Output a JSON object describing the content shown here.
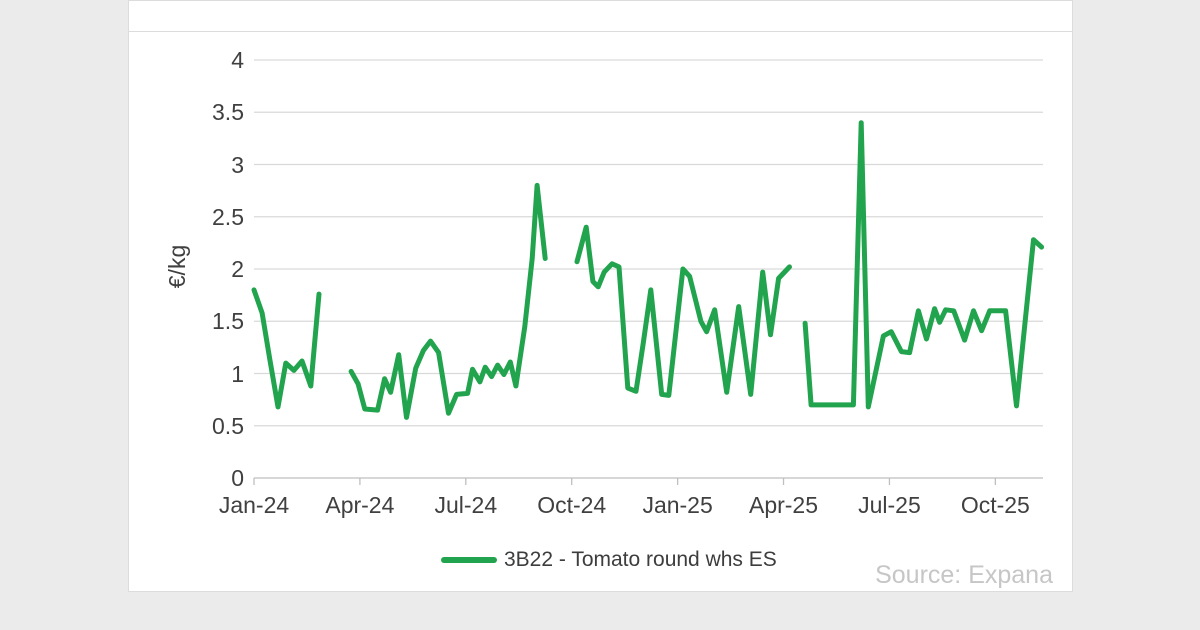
{
  "page": {
    "background_color": "#ebebeb",
    "card_background_color": "#ffffff",
    "card_border_color": "#dcdcdc"
  },
  "source_note": "Source: Expana",
  "chart_data": {
    "type": "line",
    "title": "",
    "xlabel": "",
    "ylabel": "€/kg",
    "ylim": [
      0,
      4
    ],
    "y_ticks": [
      0,
      0.5,
      1,
      1.5,
      2,
      2.5,
      3,
      3.5,
      4
    ],
    "x_tick_labels": [
      "Jan-24",
      "Apr-24",
      "Jul-24",
      "Oct-24",
      "Jan-25",
      "Apr-25",
      "Jul-25",
      "Oct-25"
    ],
    "x_tick_months": [
      0,
      3,
      6,
      9,
      12,
      15,
      18,
      21
    ],
    "x_range_months": [
      0,
      22.35
    ],
    "x_unit": "months since Jan-2024 (0 = Jan-24, weekly price observations)",
    "grid": "horizontal",
    "grid_color": "#d9d9d9",
    "axis_color": "#bfbfbf",
    "tick_text_color": "#404040",
    "legend_position": "bottom-center",
    "series": [
      {
        "name": "3B22 - Tomato round whs ES",
        "color": "#22a44e",
        "unit": "€/kg",
        "note": "line drawn in separate segments where data is missing",
        "segments": [
          [
            [
              0.0,
              1.8
            ],
            [
              0.23,
              1.58
            ],
            [
              0.45,
              1.13
            ],
            [
              0.68,
              0.68
            ],
            [
              0.9,
              1.1
            ],
            [
              1.13,
              1.03
            ],
            [
              1.36,
              1.12
            ],
            [
              1.61,
              0.88
            ],
            [
              1.84,
              1.76
            ]
          ],
          [
            [
              2.75,
              1.02
            ],
            [
              2.95,
              0.9
            ],
            [
              3.14,
              0.66
            ],
            [
              3.5,
              0.65
            ],
            [
              3.7,
              0.95
            ],
            [
              3.87,
              0.82
            ],
            [
              4.1,
              1.18
            ],
            [
              4.32,
              0.58
            ],
            [
              4.58,
              1.05
            ],
            [
              4.8,
              1.22
            ],
            [
              5.0,
              1.31
            ],
            [
              5.23,
              1.2
            ],
            [
              5.51,
              0.62
            ],
            [
              5.74,
              0.8
            ],
            [
              6.05,
              0.81
            ],
            [
              6.19,
              1.04
            ],
            [
              6.4,
              0.92
            ],
            [
              6.55,
              1.06
            ],
            [
              6.73,
              0.97
            ],
            [
              6.9,
              1.08
            ],
            [
              7.08,
              0.99
            ],
            [
              7.26,
              1.11
            ],
            [
              7.42,
              0.88
            ],
            [
              7.67,
              1.45
            ],
            [
              7.88,
              2.1
            ],
            [
              8.02,
              2.8
            ],
            [
              8.25,
              2.1
            ]
          ],
          [
            [
              9.15,
              2.07
            ],
            [
              9.41,
              2.4
            ],
            [
              9.6,
              1.88
            ],
            [
              9.75,
              1.83
            ],
            [
              9.92,
              1.97
            ],
            [
              10.14,
              2.05
            ],
            [
              10.34,
              2.02
            ],
            [
              10.59,
              0.86
            ],
            [
              10.82,
              0.83
            ],
            [
              11.03,
              1.3
            ],
            [
              11.24,
              1.8
            ],
            [
              11.55,
              0.8
            ],
            [
              11.75,
              0.79
            ],
            [
              12.15,
              2.0
            ],
            [
              12.34,
              1.93
            ],
            [
              12.66,
              1.5
            ],
            [
              12.82,
              1.4
            ],
            [
              13.05,
              1.61
            ],
            [
              13.39,
              0.82
            ],
            [
              13.73,
              1.64
            ],
            [
              14.07,
              0.8
            ],
            [
              14.41,
              1.97
            ],
            [
              14.63,
              1.37
            ],
            [
              14.86,
              1.91
            ],
            [
              15.17,
              2.02
            ]
          ],
          [
            [
              15.61,
              1.48
            ],
            [
              15.78,
              0.7
            ],
            [
              16.2,
              0.7
            ],
            [
              16.6,
              0.7
            ],
            [
              16.98,
              0.7
            ],
            [
              17.2,
              3.4
            ],
            [
              17.4,
              0.68
            ],
            [
              17.83,
              1.36
            ],
            [
              18.05,
              1.4
            ],
            [
              18.34,
              1.21
            ],
            [
              18.57,
              1.2
            ],
            [
              18.82,
              1.6
            ],
            [
              19.05,
              1.33
            ],
            [
              19.28,
              1.62
            ],
            [
              19.42,
              1.49
            ],
            [
              19.59,
              1.61
            ],
            [
              19.82,
              1.6
            ],
            [
              20.13,
              1.32
            ],
            [
              20.38,
              1.6
            ],
            [
              20.61,
              1.41
            ],
            [
              20.84,
              1.6
            ],
            [
              21.29,
              1.6
            ],
            [
              21.6,
              0.69
            ],
            [
              22.08,
              2.28
            ],
            [
              22.31,
              2.21
            ]
          ]
        ]
      }
    ]
  }
}
